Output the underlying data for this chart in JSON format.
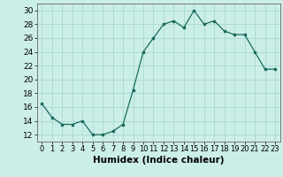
{
  "x": [
    0,
    1,
    2,
    3,
    4,
    5,
    6,
    7,
    8,
    9,
    10,
    11,
    12,
    13,
    14,
    15,
    16,
    17,
    18,
    19,
    20,
    21,
    22,
    23
  ],
  "y": [
    16.5,
    14.5,
    13.5,
    13.5,
    14,
    12,
    12,
    12.5,
    13.5,
    18.5,
    24,
    26,
    28,
    28.5,
    27.5,
    30,
    28,
    28.5,
    27,
    26.5,
    26.5,
    24,
    21.5,
    21.5
  ],
  "line_color": "#1a6b5a",
  "marker_color": "#1a6b5a",
  "bg_color": "#cceee8",
  "grid_color": "#aad8d2",
  "xlabel": "Humidex (Indice chaleur)",
  "ylim": [
    11,
    31
  ],
  "xlim": [
    -0.5,
    23.5
  ],
  "yticks": [
    12,
    14,
    16,
    18,
    20,
    22,
    24,
    26,
    28,
    30
  ],
  "xticks": [
    0,
    1,
    2,
    3,
    4,
    5,
    6,
    7,
    8,
    9,
    10,
    11,
    12,
    13,
    14,
    15,
    16,
    17,
    18,
    19,
    20,
    21,
    22,
    23
  ],
  "xlabel_fontsize": 7.5,
  "ytick_fontsize": 6.5,
  "xtick_fontsize": 6.0
}
